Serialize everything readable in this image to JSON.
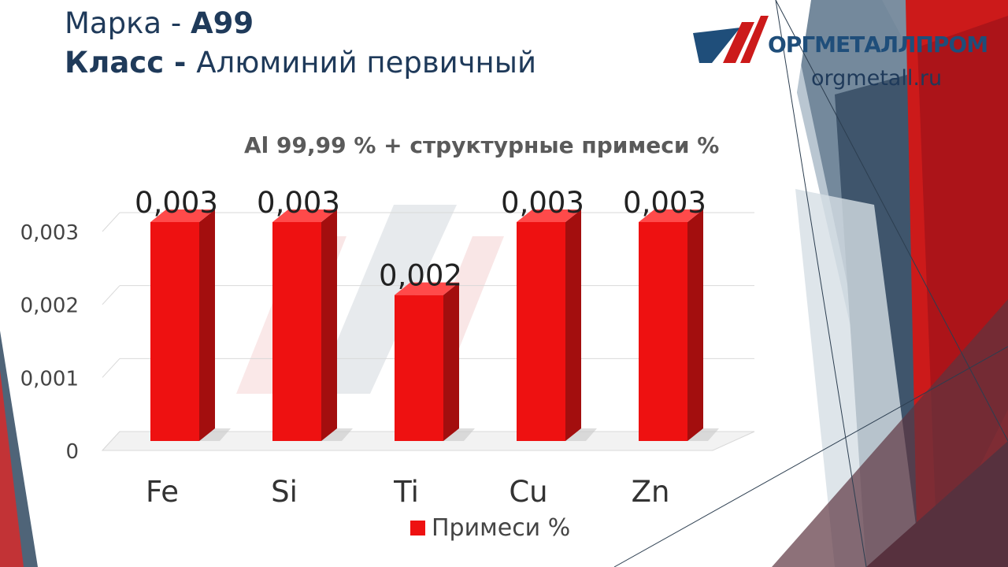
{
  "header": {
    "brand_label": "Марка - ",
    "brand_value": "А99",
    "class_label": "Класс - ",
    "class_value": "Алюминий первичный"
  },
  "logo": {
    "text": "ОРГМЕТАЛЛПРОМ",
    "url": "orgmetall.ru"
  },
  "colors": {
    "bar": "#ee1111",
    "dark_accent": "#1f3a5a",
    "red_accent": "#cc1a1a"
  },
  "chart_data": {
    "type": "bar",
    "title": "Al 99,99 % + структурные примеси %",
    "categories": [
      "Fe",
      "Si",
      "Ti",
      "Cu",
      "Zn"
    ],
    "series": [
      {
        "name": "Примеси %",
        "values": [
          0.003,
          0.003,
          0.002,
          0.003,
          0.003
        ]
      }
    ],
    "data_labels": [
      "0,003",
      "0,003",
      "0,002",
      "0,003",
      "0,003"
    ],
    "y_ticks": [
      "0",
      "0,001",
      "0,002",
      "0,003"
    ],
    "ylim": [
      0,
      0.003
    ],
    "grid": true,
    "legend": "bottom"
  }
}
